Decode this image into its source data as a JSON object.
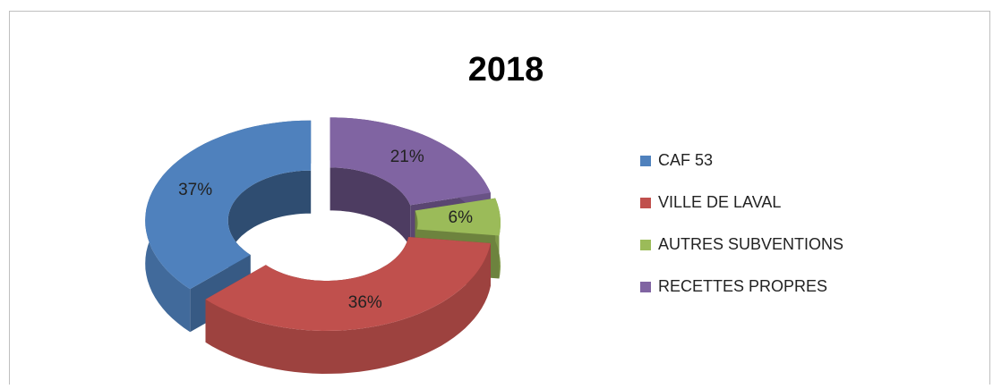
{
  "chart_data": {
    "type": "doughnut",
    "title": "2018",
    "categories": [
      "CAF 53",
      "VILLE DE LAVAL",
      "AUTRES SUBVENTIONS",
      "RECETTES PROPRES"
    ],
    "values": [
      37,
      36,
      6,
      21
    ],
    "value_labels": [
      "37%",
      "36%",
      "6%",
      "21%"
    ],
    "colors": [
      "#4f81bd",
      "#c0504d",
      "#9bbb59",
      "#8064a2"
    ],
    "legend": "right"
  }
}
